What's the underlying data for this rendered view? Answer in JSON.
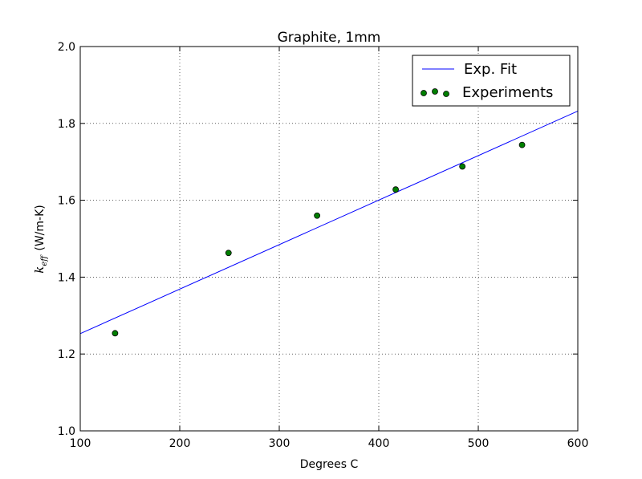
{
  "chart_data": {
    "type": "scatter",
    "title": "Graphite, 1mm",
    "xlabel": "Degrees C",
    "ylabel": {
      "symbol": "k",
      "subscript": "eff",
      "unit": "(W/m-K)"
    },
    "xlim": [
      100,
      600
    ],
    "ylim": [
      1.0,
      2.0
    ],
    "xticks": [
      100,
      200,
      300,
      400,
      500,
      600
    ],
    "yticks": [
      1.0,
      1.2,
      1.4,
      1.6,
      1.8,
      2.0
    ],
    "ytick_labels": [
      "1.0",
      "1.2",
      "1.4",
      "1.6",
      "1.8",
      "2.0"
    ],
    "grid": true,
    "legend_position": "top-right",
    "series": [
      {
        "name": "Exp. Fit",
        "kind": "line",
        "color": "#0000ff",
        "x": [
          100,
          600
        ],
        "y": [
          1.253,
          1.832
        ]
      },
      {
        "name": "Experiments",
        "kind": "scatter",
        "color": "#007f00",
        "x": [
          135,
          249,
          338,
          417,
          484,
          544
        ],
        "y": [
          1.254,
          1.463,
          1.56,
          1.628,
          1.688,
          1.744
        ]
      }
    ]
  }
}
